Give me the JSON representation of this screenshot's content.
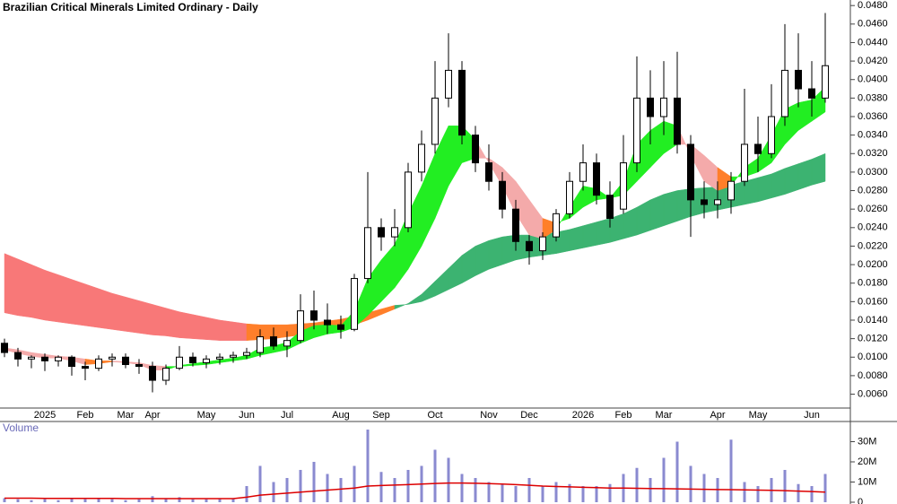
{
  "chart_data": [
    {
      "type": "candlestick",
      "title": "Brazilian Critical Minerals Limited Ordinary - Daily",
      "categories": [
        null,
        null,
        null,
        "2025",
        null,
        null,
        "Feb",
        null,
        null,
        "Mar",
        null,
        "Apr",
        null,
        null,
        null,
        "May",
        null,
        null,
        "Jun",
        null,
        null,
        "Jul",
        null,
        null,
        null,
        "Aug",
        null,
        null,
        "Sep",
        null,
        null,
        null,
        "Oct",
        null,
        null,
        null,
        "Nov",
        null,
        null,
        "Dec",
        null,
        null,
        null,
        "2026",
        null,
        null,
        "Feb",
        null,
        null,
        "Mar",
        null,
        null,
        null,
        "Apr",
        null,
        null,
        "May",
        null,
        null,
        null,
        "Jun",
        null
      ],
      "open": [
        0.0115,
        0.0105,
        0.0098,
        0.01,
        0.0096,
        0.01,
        0.009,
        0.0088,
        0.0098,
        0.01,
        0.0092,
        0.009,
        0.0075,
        0.0088,
        0.01,
        0.0094,
        0.0098,
        0.01,
        0.0102,
        0.0105,
        0.0122,
        0.0112,
        0.0118,
        0.015,
        0.014,
        0.0135,
        0.013,
        0.0185,
        0.024,
        0.023,
        0.024,
        0.03,
        0.033,
        0.038,
        0.041,
        0.034,
        0.031,
        0.029,
        0.026,
        0.0225,
        0.0215,
        0.023,
        0.0255,
        0.029,
        0.031,
        0.0275,
        0.026,
        0.031,
        0.038,
        0.036,
        0.038,
        0.033,
        0.027,
        0.0265,
        0.027,
        0.029,
        0.033,
        0.032,
        0.036,
        0.041,
        0.039,
        0.038
      ],
      "high": [
        0.012,
        0.011,
        0.0102,
        0.0104,
        0.0102,
        0.0102,
        0.0095,
        0.0102,
        0.0104,
        0.0104,
        0.0098,
        0.0095,
        0.0092,
        0.0112,
        0.0105,
        0.0102,
        0.0104,
        0.0106,
        0.011,
        0.013,
        0.0132,
        0.0128,
        0.0168,
        0.0172,
        0.0158,
        0.0145,
        0.019,
        0.03,
        0.025,
        0.026,
        0.031,
        0.0345,
        0.042,
        0.045,
        0.042,
        0.035,
        0.033,
        0.03,
        0.027,
        0.0232,
        0.0235,
        0.026,
        0.03,
        0.033,
        0.032,
        0.029,
        0.034,
        0.0425,
        0.041,
        0.042,
        0.043,
        0.034,
        0.029,
        0.029,
        0.03,
        0.039,
        0.036,
        0.0395,
        0.046,
        0.045,
        0.042,
        0.0472
      ],
      "low": [
        0.01,
        0.009,
        0.0088,
        0.0085,
        0.009,
        0.008,
        0.0075,
        0.0085,
        0.009,
        0.0088,
        0.0082,
        0.0062,
        0.007,
        0.0086,
        0.009,
        0.0088,
        0.0092,
        0.0094,
        0.0098,
        0.01,
        0.0108,
        0.01,
        0.0115,
        0.013,
        0.0125,
        0.012,
        0.0128,
        0.018,
        0.0215,
        0.022,
        0.0235,
        0.029,
        0.032,
        0.037,
        0.033,
        0.03,
        0.028,
        0.025,
        0.0215,
        0.02,
        0.0205,
        0.0225,
        0.025,
        0.028,
        0.0265,
        0.024,
        0.0255,
        0.03,
        0.033,
        0.034,
        0.032,
        0.023,
        0.025,
        0.025,
        0.0255,
        0.0285,
        0.03,
        0.0315,
        0.035,
        0.037,
        0.036,
        0.0375
      ],
      "close": [
        0.0105,
        0.0098,
        0.01,
        0.0096,
        0.01,
        0.009,
        0.0088,
        0.0098,
        0.01,
        0.0092,
        0.009,
        0.0075,
        0.0088,
        0.01,
        0.0094,
        0.0098,
        0.01,
        0.0102,
        0.0105,
        0.0122,
        0.0112,
        0.0118,
        0.015,
        0.014,
        0.0135,
        0.013,
        0.0185,
        0.024,
        0.023,
        0.024,
        0.03,
        0.033,
        0.038,
        0.041,
        0.034,
        0.031,
        0.029,
        0.026,
        0.0225,
        0.0215,
        0.023,
        0.0255,
        0.029,
        0.031,
        0.0275,
        0.025,
        0.031,
        0.038,
        0.036,
        0.038,
        0.033,
        0.027,
        0.0265,
        0.027,
        0.029,
        0.033,
        0.032,
        0.036,
        0.041,
        0.039,
        0.038,
        0.0415
      ],
      "bands": [
        {
          "fast": [
            0.0148,
            0.0145,
            0.0143,
            0.014,
            0.0138,
            0.0136,
            0.0134,
            0.0132,
            0.013,
            0.0128,
            0.0126,
            0.0124,
            0.0123,
            0.0121,
            0.012,
            0.0119,
            0.0118,
            0.0118,
            0.0118,
            0.0119,
            0.012,
            0.0122,
            0.0124,
            0.0126,
            0.0128,
            0.0131,
            0.0135,
            0.014,
            0.0146,
            0.0152,
            0.0158,
            0.0168,
            0.0182,
            0.0196,
            0.021,
            0.022,
            0.0226,
            0.023,
            0.0232,
            0.0232,
            0.0233,
            0.0235,
            0.0238,
            0.0242,
            0.0246,
            0.025,
            0.0255,
            0.0262,
            0.027,
            0.0276,
            0.028,
            0.0282,
            0.0283,
            0.0284,
            0.0286,
            0.029,
            0.0294,
            0.0298,
            0.0304,
            0.0309,
            0.0314,
            0.032
          ],
          "slow": [
            0.0212,
            0.0206,
            0.02,
            0.0194,
            0.0189,
            0.0184,
            0.0179,
            0.0174,
            0.0169,
            0.0165,
            0.0161,
            0.0157,
            0.0153,
            0.0149,
            0.0146,
            0.0143,
            0.014,
            0.0138,
            0.0136,
            0.0135,
            0.0135,
            0.0135,
            0.0136,
            0.0137,
            0.0139,
            0.0141,
            0.0144,
            0.0148,
            0.0152,
            0.0156,
            0.0157,
            0.016,
            0.0166,
            0.0173,
            0.018,
            0.0188,
            0.0195,
            0.02,
            0.0205,
            0.0208,
            0.021,
            0.0212,
            0.0215,
            0.0218,
            0.0221,
            0.0224,
            0.0228,
            0.0232,
            0.0237,
            0.0242,
            0.0247,
            0.0252,
            0.0256,
            0.0259,
            0.0262,
            0.0265,
            0.0268,
            0.0272,
            0.0276,
            0.0281,
            0.0286,
            0.029
          ],
          "colors": {
            "up": "#3cb371",
            "turning": "#ff7f2a",
            "down": "#f87878"
          }
        },
        {
          "fast": [
            0.0108,
            0.0104,
            0.0101,
            0.0099,
            0.0099,
            0.0096,
            0.0092,
            0.0093,
            0.0095,
            0.0094,
            0.0092,
            0.0086,
            0.0086,
            0.0091,
            0.0093,
            0.0095,
            0.0097,
            0.0099,
            0.0102,
            0.011,
            0.0112,
            0.0116,
            0.0128,
            0.0134,
            0.0135,
            0.0134,
            0.015,
            0.0185,
            0.0205,
            0.0222,
            0.0255,
            0.0285,
            0.032,
            0.035,
            0.035,
            0.0335,
            0.031,
            0.0285,
            0.0255,
            0.0232,
            0.0228,
            0.0238,
            0.0262,
            0.0285,
            0.0282,
            0.0272,
            0.029,
            0.033,
            0.0345,
            0.0355,
            0.035,
            0.0318,
            0.029,
            0.028,
            0.0285,
            0.0305,
            0.0315,
            0.034,
            0.0368,
            0.0375,
            0.0378,
            0.0392
          ],
          "slow": [
            0.011,
            0.0108,
            0.0105,
            0.0103,
            0.0101,
            0.01,
            0.0098,
            0.0096,
            0.0096,
            0.0095,
            0.0094,
            0.0091,
            0.009,
            0.009,
            0.0091,
            0.0092,
            0.0094,
            0.0096,
            0.0098,
            0.0102,
            0.0105,
            0.0108,
            0.0115,
            0.0121,
            0.0125,
            0.0127,
            0.0132,
            0.0145,
            0.016,
            0.0175,
            0.0195,
            0.022,
            0.025,
            0.0285,
            0.031,
            0.0315,
            0.0315,
            0.0305,
            0.029,
            0.027,
            0.025,
            0.0245,
            0.025,
            0.0262,
            0.027,
            0.0272,
            0.0275,
            0.029,
            0.0305,
            0.032,
            0.033,
            0.033,
            0.0318,
            0.0305,
            0.0295,
            0.0295,
            0.03,
            0.031,
            0.033,
            0.0345,
            0.0355,
            0.0365
          ],
          "colors": {
            "up": "#22ee22",
            "turning": "#ff7f2a",
            "down": "#f4aaaa"
          }
        }
      ],
      "ylim": [
        0.0045,
        0.0486
      ],
      "yticks": [
        {
          "value": 0.006,
          "label": "0.0060"
        },
        {
          "value": 0.008,
          "label": "0.0080"
        },
        {
          "value": 0.01,
          "label": "0.0100"
        },
        {
          "value": 0.012,
          "label": "0.0120"
        },
        {
          "value": 0.014,
          "label": "0.0140"
        },
        {
          "value": 0.016,
          "label": "0.0160"
        },
        {
          "value": 0.018,
          "label": "0.0180"
        },
        {
          "value": 0.02,
          "label": "0.0200"
        },
        {
          "value": 0.022,
          "label": "0.0220"
        },
        {
          "value": 0.024,
          "label": "0.0240"
        },
        {
          "value": 0.026,
          "label": "0.0260"
        },
        {
          "value": 0.028,
          "label": "0.0280"
        },
        {
          "value": 0.03,
          "label": "0.0300"
        },
        {
          "value": 0.032,
          "label": "0.0320"
        },
        {
          "value": 0.034,
          "label": "0.0340"
        },
        {
          "value": 0.036,
          "label": "0.0360"
        },
        {
          "value": 0.038,
          "label": "0.0380"
        },
        {
          "value": 0.04,
          "label": "0.0400"
        },
        {
          "value": 0.042,
          "label": "0.0420"
        },
        {
          "value": 0.044,
          "label": "0.0440"
        },
        {
          "value": 0.046,
          "label": "0.0460"
        },
        {
          "value": 0.048,
          "label": "0.0480"
        }
      ]
    },
    {
      "type": "bar",
      "title": "Volume",
      "color": "#8a8ad0",
      "values": [
        2000000,
        1500000,
        1000000,
        1500000,
        1000000,
        2000000,
        1500000,
        2000000,
        1500000,
        1000000,
        1500000,
        3000000,
        2000000,
        2500000,
        1500000,
        1500000,
        2000000,
        2000000,
        8000000,
        18000000,
        10000000,
        12000000,
        16000000,
        20000000,
        14000000,
        12000000,
        18000000,
        36000000,
        15000000,
        12000000,
        16000000,
        18000000,
        26000000,
        22000000,
        14000000,
        12000000,
        10000000,
        9000000,
        8000000,
        12000000,
        8000000,
        10000000,
        9000000,
        8000000,
        8000000,
        9000000,
        14000000,
        17000000,
        12000000,
        22000000,
        30000000,
        18000000,
        14000000,
        12000000,
        31000000,
        10000000,
        8000000,
        12000000,
        16000000,
        9000000,
        8000000,
        14000000
      ],
      "average": {
        "color": "#dd0000",
        "values": [
          2000000,
          2000000,
          2000000,
          1900000,
          1900000,
          1900000,
          1900000,
          1900000,
          1900000,
          1800000,
          1800000,
          1800000,
          1800000,
          1800000,
          1800000,
          1800000,
          1800000,
          1800000,
          2500000,
          3500000,
          4000000,
          4500000,
          5000000,
          5500000,
          6000000,
          6500000,
          7000000,
          8000000,
          8300000,
          8500000,
          8700000,
          9000000,
          9300000,
          9500000,
          9500000,
          9400000,
          9200000,
          9000000,
          8700000,
          8400000,
          8000000,
          7800000,
          7600000,
          7400000,
          7200000,
          7000000,
          7000000,
          6900000,
          6800000,
          6700000,
          6600000,
          6500000,
          6400000,
          6300000,
          6200000,
          6100000,
          6000000,
          5900000,
          5700000,
          5500000,
          5300000,
          5000000
        ]
      },
      "ylim": [
        0,
        40000000
      ],
      "yticks": [
        0,
        {
          "value": 10000000,
          "label": "10M"
        },
        {
          "value": 20000000,
          "label": "20M"
        },
        {
          "value": 30000000,
          "label": "30M"
        }
      ]
    }
  ]
}
